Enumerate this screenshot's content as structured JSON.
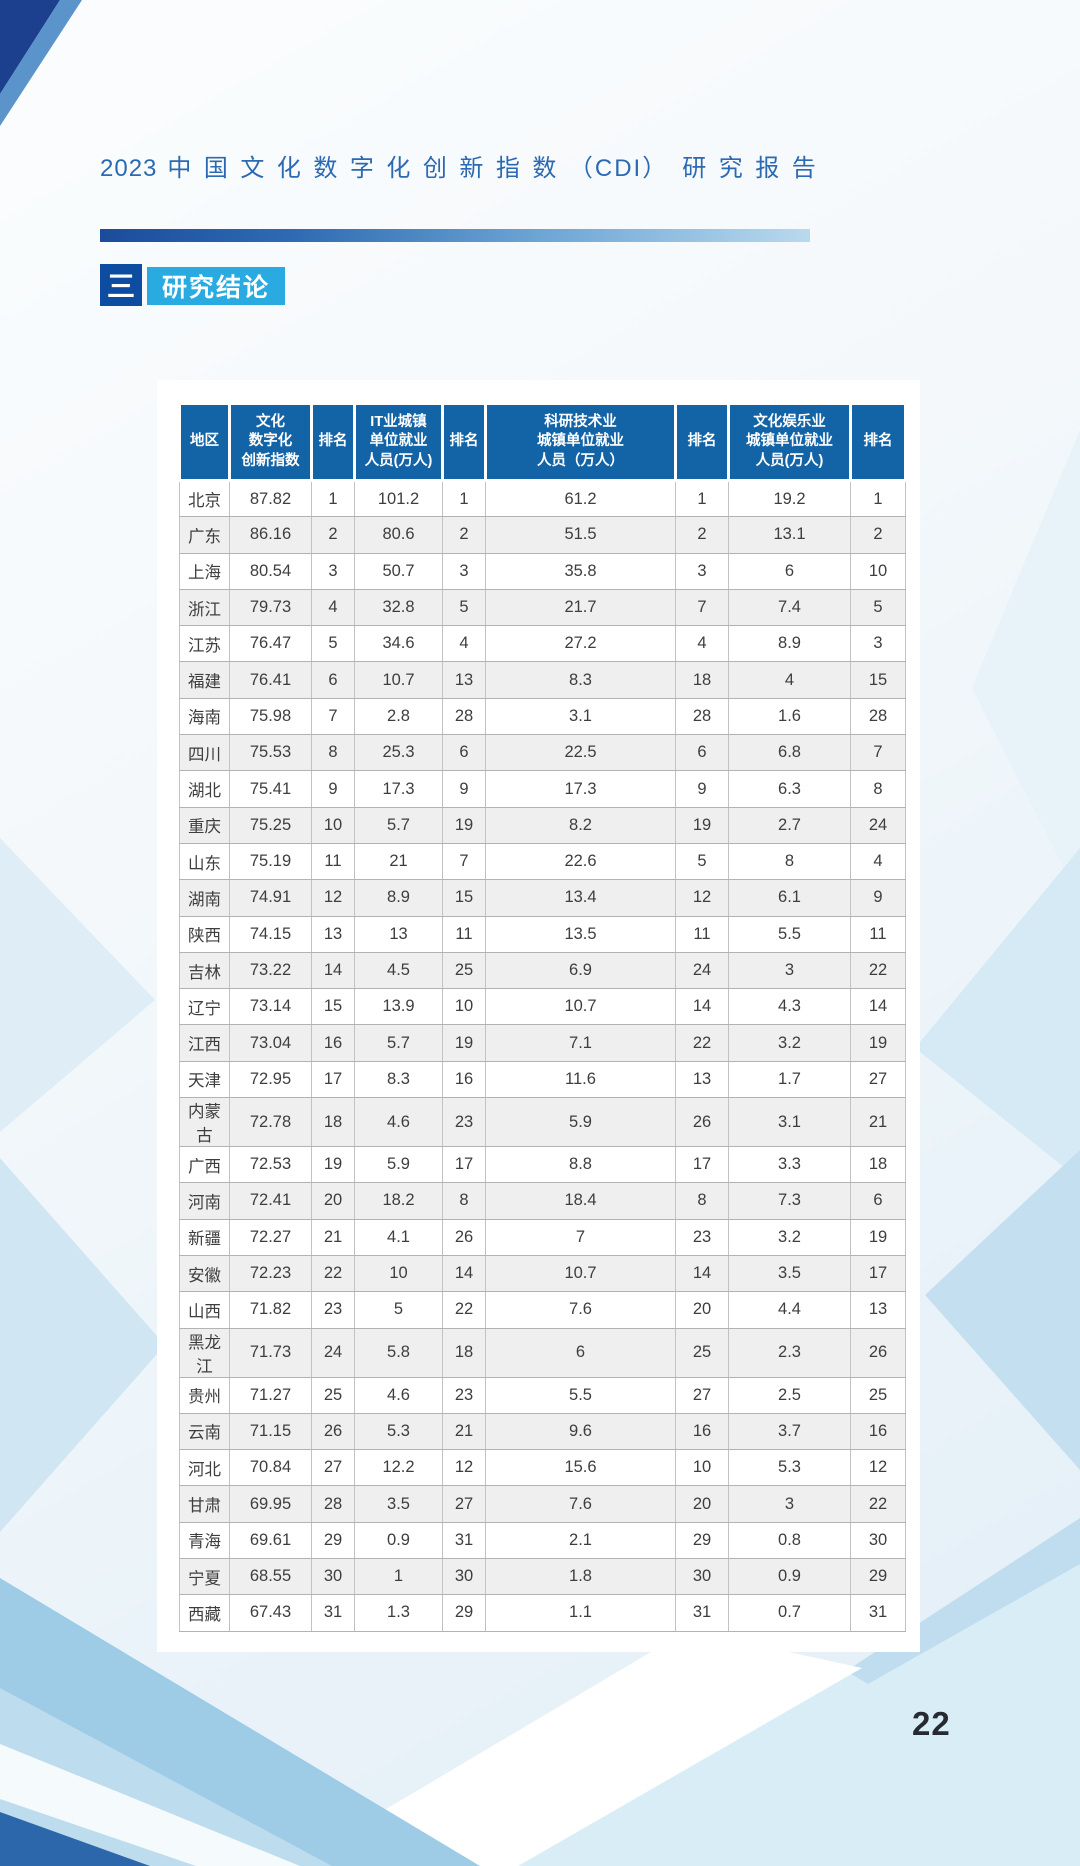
{
  "header": {
    "title_year": "2023",
    "title_main": "中国文化数字化创新指数",
    "title_cdi": "（CDI）",
    "title_suffix": "研究报告"
  },
  "section": {
    "marker": "三",
    "label": "研究结论"
  },
  "table": {
    "headers": [
      "地区",
      "文化\n数字化\n创新指数",
      "排名",
      "IT业城镇\n单位就业\n人员(万人)",
      "排名",
      "科研技术业\n城镇单位就业\n人员（万人）",
      "排名",
      "文化娱乐业\n城镇单位就业\n人员(万人)",
      "排名"
    ],
    "rows": [
      [
        "北京",
        "87.82",
        "1",
        "101.2",
        "1",
        "61.2",
        "1",
        "19.2",
        "1"
      ],
      [
        "广东",
        "86.16",
        "2",
        "80.6",
        "2",
        "51.5",
        "2",
        "13.1",
        "2"
      ],
      [
        "上海",
        "80.54",
        "3",
        "50.7",
        "3",
        "35.8",
        "3",
        "6",
        "10"
      ],
      [
        "浙江",
        "79.73",
        "4",
        "32.8",
        "5",
        "21.7",
        "7",
        "7.4",
        "5"
      ],
      [
        "江苏",
        "76.47",
        "5",
        "34.6",
        "4",
        "27.2",
        "4",
        "8.9",
        "3"
      ],
      [
        "福建",
        "76.41",
        "6",
        "10.7",
        "13",
        "8.3",
        "18",
        "4",
        "15"
      ],
      [
        "海南",
        "75.98",
        "7",
        "2.8",
        "28",
        "3.1",
        "28",
        "1.6",
        "28"
      ],
      [
        "四川",
        "75.53",
        "8",
        "25.3",
        "6",
        "22.5",
        "6",
        "6.8",
        "7"
      ],
      [
        "湖北",
        "75.41",
        "9",
        "17.3",
        "9",
        "17.3",
        "9",
        "6.3",
        "8"
      ],
      [
        "重庆",
        "75.25",
        "10",
        "5.7",
        "19",
        "8.2",
        "19",
        "2.7",
        "24"
      ],
      [
        "山东",
        "75.19",
        "11",
        "21",
        "7",
        "22.6",
        "5",
        "8",
        "4"
      ],
      [
        "湖南",
        "74.91",
        "12",
        "8.9",
        "15",
        "13.4",
        "12",
        "6.1",
        "9"
      ],
      [
        "陕西",
        "74.15",
        "13",
        "13",
        "11",
        "13.5",
        "11",
        "5.5",
        "11"
      ],
      [
        "吉林",
        "73.22",
        "14",
        "4.5",
        "25",
        "6.9",
        "24",
        "3",
        "22"
      ],
      [
        "辽宁",
        "73.14",
        "15",
        "13.9",
        "10",
        "10.7",
        "14",
        "4.3",
        "14"
      ],
      [
        "江西",
        "73.04",
        "16",
        "5.7",
        "19",
        "7.1",
        "22",
        "3.2",
        "19"
      ],
      [
        "天津",
        "72.95",
        "17",
        "8.3",
        "16",
        "11.6",
        "13",
        "1.7",
        "27"
      ],
      [
        "内蒙古",
        "72.78",
        "18",
        "4.6",
        "23",
        "5.9",
        "26",
        "3.1",
        "21"
      ],
      [
        "广西",
        "72.53",
        "19",
        "5.9",
        "17",
        "8.8",
        "17",
        "3.3",
        "18"
      ],
      [
        "河南",
        "72.41",
        "20",
        "18.2",
        "8",
        "18.4",
        "8",
        "7.3",
        "6"
      ],
      [
        "新疆",
        "72.27",
        "21",
        "4.1",
        "26",
        "7",
        "23",
        "3.2",
        "19"
      ],
      [
        "安徽",
        "72.23",
        "22",
        "10",
        "14",
        "10.7",
        "14",
        "3.5",
        "17"
      ],
      [
        "山西",
        "71.82",
        "23",
        "5",
        "22",
        "7.6",
        "20",
        "4.4",
        "13"
      ],
      [
        "黑龙江",
        "71.73",
        "24",
        "5.8",
        "18",
        "6",
        "25",
        "2.3",
        "26"
      ],
      [
        "贵州",
        "71.27",
        "25",
        "4.6",
        "23",
        "5.5",
        "27",
        "2.5",
        "25"
      ],
      [
        "云南",
        "71.15",
        "26",
        "5.3",
        "21",
        "9.6",
        "16",
        "3.7",
        "16"
      ],
      [
        "河北",
        "70.84",
        "27",
        "12.2",
        "12",
        "15.6",
        "10",
        "5.3",
        "12"
      ],
      [
        "甘肃",
        "69.95",
        "28",
        "3.5",
        "27",
        "7.6",
        "20",
        "3",
        "22"
      ],
      [
        "青海",
        "69.61",
        "29",
        "0.9",
        "31",
        "2.1",
        "29",
        "0.8",
        "30"
      ],
      [
        "宁夏",
        "68.55",
        "30",
        "1",
        "30",
        "1.8",
        "30",
        "0.9",
        "29"
      ],
      [
        "西藏",
        "67.43",
        "31",
        "1.3",
        "29",
        "1.1",
        "31",
        "0.7",
        "31"
      ]
    ]
  },
  "footer": {
    "page_number": "22"
  },
  "colors": {
    "title_blue": "#2b6ab3",
    "table_header_blue": "#1363a7",
    "section_badge_navy": "#0c4da2",
    "section_band_cyan": "#29abe2",
    "row_stripe_gray": "#efefef",
    "divider_dark_blue": "#1b4c9c",
    "divider_light_blue": "#b9d9ee",
    "page_number_dark": "#262a31"
  }
}
